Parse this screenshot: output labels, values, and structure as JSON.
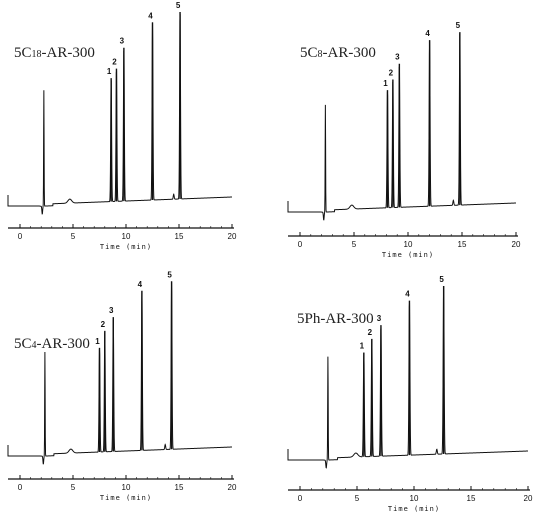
{
  "chart_data": [
    {
      "type": "line",
      "title": "5C18-AR-300",
      "xlabel": "Time (min)",
      "xlim": [
        0,
        20
      ],
      "xticks": [
        0,
        5,
        10,
        15,
        20
      ],
      "injection_time": 2.1,
      "peaks": [
        {
          "label": "1",
          "time": 8.6,
          "height": 0.66
        },
        {
          "label": "2",
          "time": 9.1,
          "height": 0.71
        },
        {
          "label": "3",
          "time": 9.8,
          "height": 0.82
        },
        {
          "label": "4",
          "time": 12.5,
          "height": 0.95
        },
        {
          "label": "5",
          "time": 15.1,
          "height": 1.0
        }
      ]
    },
    {
      "type": "line",
      "title": "5C8-AR-300",
      "xlabel": "Time (min)",
      "xlim": [
        0,
        20
      ],
      "xticks": [
        0,
        5,
        10,
        15,
        20
      ],
      "injection_time": 2.2,
      "peaks": [
        {
          "label": "1",
          "time": 8.1,
          "height": 0.68
        },
        {
          "label": "2",
          "time": 8.6,
          "height": 0.74
        },
        {
          "label": "3",
          "time": 9.2,
          "height": 0.83
        },
        {
          "label": "4",
          "time": 12.0,
          "height": 0.96
        },
        {
          "label": "5",
          "time": 14.8,
          "height": 1.0
        }
      ]
    },
    {
      "type": "line",
      "title": "5C4-AR-300",
      "xlabel": "Time (min)",
      "xlim": [
        0,
        20
      ],
      "xticks": [
        0,
        5,
        10,
        15,
        20
      ],
      "injection_time": 2.2,
      "peaks": [
        {
          "label": "1",
          "time": 7.5,
          "height": 0.62
        },
        {
          "label": "2",
          "time": 8.0,
          "height": 0.72
        },
        {
          "label": "3",
          "time": 8.8,
          "height": 0.8
        },
        {
          "label": "4",
          "time": 11.5,
          "height": 0.95
        },
        {
          "label": "5",
          "time": 14.3,
          "height": 1.0
        }
      ]
    },
    {
      "type": "line",
      "title": "5Ph-AR-300",
      "xlabel": "Time (min)",
      "xlim": [
        0,
        20
      ],
      "xticks": [
        0,
        5,
        10,
        15,
        20
      ],
      "injection_time": 2.3,
      "peaks": [
        {
          "label": "1",
          "time": 5.6,
          "height": 0.62
        },
        {
          "label": "2",
          "time": 6.3,
          "height": 0.7
        },
        {
          "label": "3",
          "time": 7.1,
          "height": 0.78
        },
        {
          "label": "4",
          "time": 9.6,
          "height": 0.92
        },
        {
          "label": "5",
          "time": 12.6,
          "height": 1.0
        }
      ]
    }
  ]
}
